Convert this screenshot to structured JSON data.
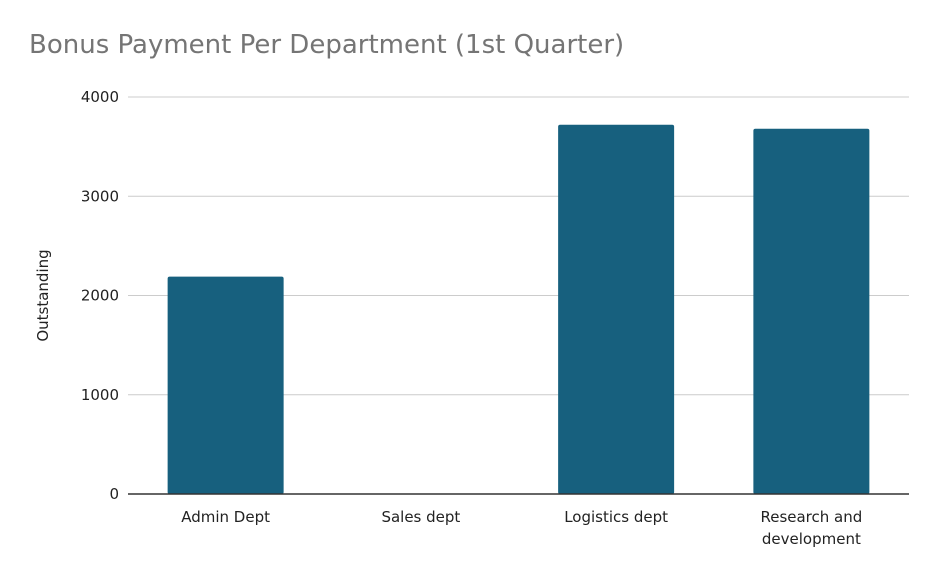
{
  "chart_data": {
    "type": "bar",
    "title": "Bonus Payment Per Department (1st Quarter)",
    "xlabel": "",
    "ylabel": "Outstanding",
    "categories": [
      "Admin Dept",
      "Sales dept",
      "Logistics dept",
      "Research and development"
    ],
    "values": [
      2190,
      0,
      3720,
      3680
    ],
    "ylim": [
      0,
      4000
    ],
    "yticks": [
      0,
      1000,
      2000,
      3000,
      4000
    ],
    "grid": true,
    "legend": "none",
    "bar_color": "#17607e",
    "grid_color": "#cccccc",
    "axis_color": "#333333"
  }
}
